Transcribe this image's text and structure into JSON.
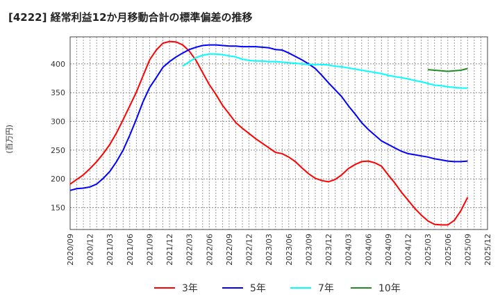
{
  "chart_data": {
    "type": "line",
    "title": "[4222]  経常利益12か月移動合計の標準偏差の推移",
    "ylabel": "(百万円)",
    "xlabel": "",
    "ylim": [
      112,
      447
    ],
    "yticks": [
      150,
      200,
      250,
      300,
      350,
      400
    ],
    "x_start": "2020/09",
    "x_end_axis": "2025/12",
    "xtick_labels": [
      "2020/09",
      "2020/12",
      "2021/03",
      "2021/06",
      "2021/09",
      "2021/12",
      "2022/03",
      "2022/06",
      "2022/09",
      "2022/12",
      "2023/03",
      "2023/06",
      "2023/09",
      "2023/12",
      "2024/03",
      "2024/06",
      "2024/09",
      "2024/12",
      "2025/03",
      "2025/06",
      "2025/09",
      "2025/12"
    ],
    "grid": true,
    "legend_position": "bottom",
    "series": [
      {
        "name": "3年",
        "color": "#ff0000",
        "start_month_index": 0,
        "values": [
          191,
          199,
          207,
          218,
          230,
          244,
          260,
          280,
          303,
          327,
          351,
          379,
          407,
          424,
          436,
          439,
          438,
          433,
          422,
          406,
          385,
          364,
          347,
          328,
          313,
          298,
          288,
          279,
          270,
          262,
          254,
          246,
          244,
          238,
          230,
          219,
          209,
          201,
          197,
          195,
          199,
          207,
          218,
          225,
          230,
          231,
          228,
          222,
          207,
          193,
          177,
          163,
          149,
          137,
          127,
          121,
          120,
          120,
          128,
          145,
          168
        ]
      },
      {
        "name": "5年",
        "color": "#0000ff",
        "start_month_index": 0,
        "values": [
          180,
          183,
          184,
          186,
          191,
          201,
          213,
          230,
          250,
          276,
          304,
          334,
          359,
          376,
          394,
          404,
          412,
          419,
          425,
          429,
          432,
          433,
          433,
          432,
          431,
          431,
          430,
          430,
          430,
          429,
          428,
          425,
          424,
          419,
          413,
          407,
          400,
          392,
          380,
          367,
          355,
          343,
          327,
          313,
          298,
          286,
          276,
          266,
          260,
          254,
          248,
          244,
          242,
          240,
          238,
          235,
          233,
          231,
          230,
          230,
          231
        ]
      },
      {
        "name": "7年",
        "color": "#00ffff",
        "start_month_index": 17,
        "values": [
          396,
          404,
          411,
          415,
          417,
          417,
          416,
          414,
          412,
          408,
          406,
          405,
          405,
          404,
          404,
          403,
          402,
          401,
          400,
          399,
          399,
          399,
          398,
          396,
          395,
          393,
          391,
          389,
          387,
          385,
          383,
          380,
          378,
          376,
          374,
          371,
          369,
          366,
          363,
          362,
          360,
          359,
          358,
          358
        ]
      },
      {
        "name": "10年",
        "color": "#228b22",
        "start_month_index": 54,
        "values": [
          390,
          389,
          388,
          387,
          388,
          389,
          392
        ]
      }
    ]
  }
}
